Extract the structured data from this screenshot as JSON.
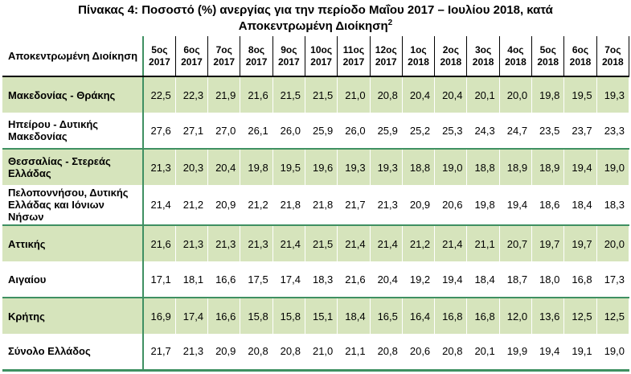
{
  "title": {
    "line1": "Πίνακας 4: Ποσοστό (%) ανεργίας για την περίοδο Μαΐου 2017 – Ιουλίου 2018, κατά",
    "line2": "Αποκεντρωμένη Διοίκηση",
    "footnote_marker": "2"
  },
  "colors": {
    "row_shading_green": "#d6e4bc",
    "accent_line_green": "#3f9062",
    "header_border_black": "#000000"
  },
  "table": {
    "region_header": "Αποκεντρωμένη Διοίκηση",
    "columns": [
      {
        "month": "5ος",
        "year": "2017"
      },
      {
        "month": "6ος",
        "year": "2017"
      },
      {
        "month": "7ος",
        "year": "2017"
      },
      {
        "month": "8ος",
        "year": "2017"
      },
      {
        "month": "9ος",
        "year": "2017"
      },
      {
        "month": "10ος",
        "year": "2017"
      },
      {
        "month": "11ος",
        "year": "2017"
      },
      {
        "month": "12ος",
        "year": "2017"
      },
      {
        "month": "1ος",
        "year": "2018"
      },
      {
        "month": "2ος",
        "year": "2018"
      },
      {
        "month": "3ος",
        "year": "2018"
      },
      {
        "month": "4ος",
        "year": "2018"
      },
      {
        "month": "5ος",
        "year": "2018"
      },
      {
        "month": "6ος",
        "year": "2018"
      },
      {
        "month": "7ος",
        "year": "2018"
      }
    ],
    "rows": [
      {
        "region": "Μακεδονίας - Θράκης",
        "shaded": true,
        "values": [
          "22,5",
          "22,3",
          "21,9",
          "21,6",
          "21,5",
          "21,5",
          "21,0",
          "20,8",
          "20,4",
          "20,4",
          "20,1",
          "20,0",
          "19,8",
          "19,5",
          "19,3"
        ]
      },
      {
        "region": "Ηπείρου - Δυτικής Μακεδονίας",
        "shaded": false,
        "values": [
          "27,6",
          "27,1",
          "27,0",
          "26,1",
          "26,0",
          "25,9",
          "26,0",
          "25,9",
          "25,2",
          "25,3",
          "24,3",
          "24,7",
          "23,5",
          "23,7",
          "23,3"
        ]
      },
      {
        "region": "Θεσσαλίας - Στερεάς Ελλάδας",
        "shaded": true,
        "values": [
          "21,3",
          "20,3",
          "20,4",
          "19,8",
          "19,5",
          "19,6",
          "19,3",
          "19,3",
          "18,8",
          "19,0",
          "18,8",
          "18,9",
          "18,9",
          "19,4",
          "19,0"
        ]
      },
      {
        "region": "Πελοποννήσου, Δυτικής Ελλάδας και Ιόνιων Νήσων",
        "shaded": false,
        "values": [
          "21,4",
          "21,2",
          "20,9",
          "21,2",
          "21,8",
          "21,8",
          "21,7",
          "21,3",
          "20,9",
          "20,6",
          "19,8",
          "19,4",
          "18,6",
          "18,4",
          "18,3"
        ]
      },
      {
        "region": "Αττικής",
        "shaded": true,
        "values": [
          "21,6",
          "21,3",
          "21,3",
          "21,3",
          "21,4",
          "21,5",
          "21,4",
          "21,4",
          "21,2",
          "21,4",
          "21,1",
          "20,7",
          "19,7",
          "19,7",
          "20,0"
        ]
      },
      {
        "region": "Αιγαίου",
        "shaded": false,
        "values": [
          "17,1",
          "18,1",
          "16,6",
          "17,5",
          "17,4",
          "18,3",
          "21,6",
          "20,4",
          "19,2",
          "19,4",
          "18,4",
          "18,7",
          "18,0",
          "16,8",
          "17,3"
        ]
      },
      {
        "region": "Κρήτης",
        "shaded": true,
        "values": [
          "16,9",
          "17,4",
          "16,6",
          "15,8",
          "15,8",
          "15,1",
          "18,4",
          "16,5",
          "16,4",
          "16,8",
          "16,8",
          "12,0",
          "13,6",
          "12,5",
          "12,5"
        ]
      },
      {
        "region": "Σύνολο Ελλάδος",
        "shaded": false,
        "values": [
          "21,7",
          "21,3",
          "20,9",
          "20,8",
          "20,8",
          "21,0",
          "21,1",
          "20,8",
          "20,6",
          "20,8",
          "20,1",
          "19,9",
          "19,4",
          "19,1",
          "19,0"
        ]
      }
    ]
  }
}
